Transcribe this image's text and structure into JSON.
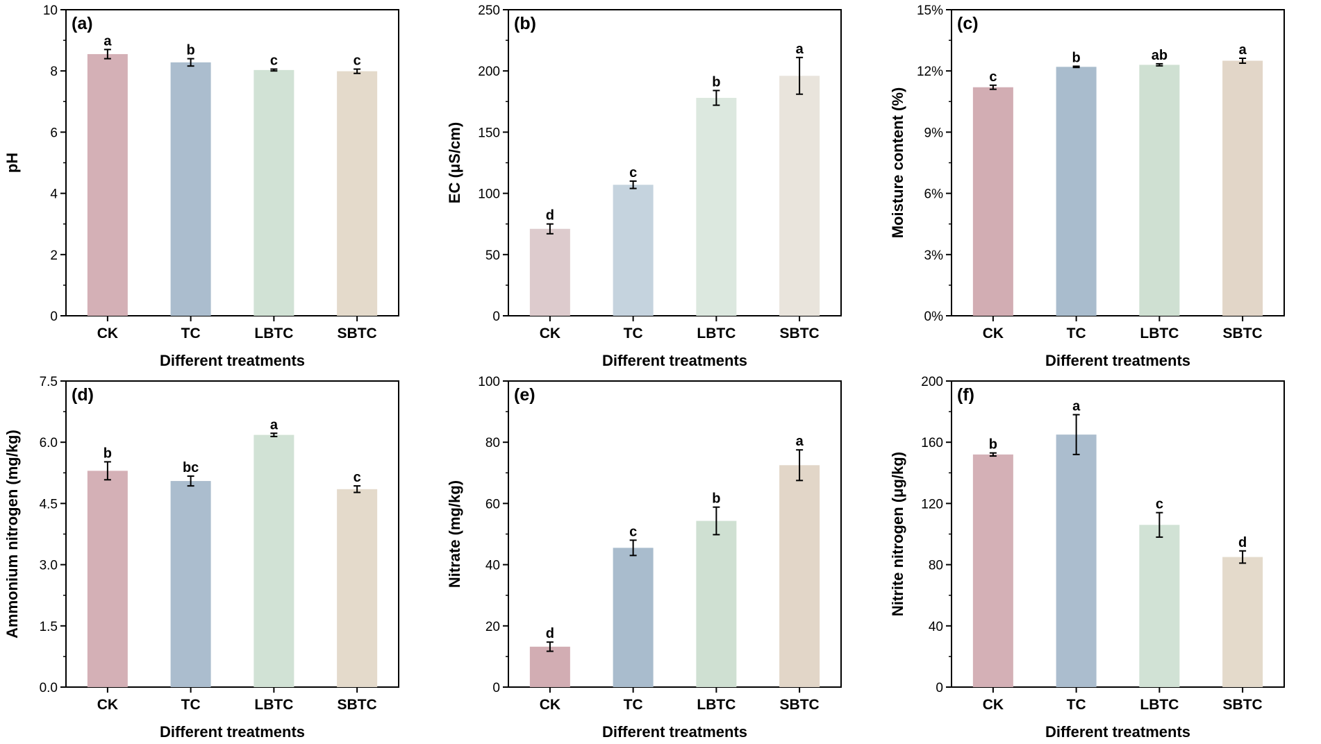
{
  "chart_data": [
    {
      "panel": "(a)",
      "type": "bar",
      "categories": [
        "CK",
        "TC",
        "LBTC",
        "SBTC"
      ],
      "values": [
        8.55,
        8.28,
        8.03,
        7.99
      ],
      "errors": [
        0.15,
        0.12,
        0.03,
        0.07
      ],
      "sig_letters": [
        "a",
        "b",
        "c",
        "c"
      ],
      "colors": [
        "#d4b0b6",
        "#abbdce",
        "#d1e2d5",
        "#e4dacb"
      ],
      "xlabel": "Different treatments",
      "ylabel": "pH",
      "ylim": [
        0,
        10
      ],
      "ytick_values": [
        0,
        2,
        4,
        6,
        8,
        10
      ],
      "ytick_labels": [
        "0",
        "2",
        "4",
        "6",
        "8",
        "10"
      ]
    },
    {
      "panel": "(b)",
      "type": "bar",
      "categories": [
        "CK",
        "TC",
        "LBTC",
        "SBTC"
      ],
      "values": [
        71,
        107,
        178,
        196
      ],
      "errors": [
        4,
        3,
        6,
        15
      ],
      "sig_letters": [
        "d",
        "c",
        "b",
        "a"
      ],
      "colors": [
        "#ddcbcd",
        "#c5d3de",
        "#dce8df",
        "#e9e4dc"
      ],
      "xlabel": "Different treatments",
      "ylabel": "EC (μS/cm)",
      "ylim": [
        0,
        250
      ],
      "ytick_values": [
        0,
        50,
        100,
        150,
        200,
        250
      ],
      "ytick_labels": [
        "0",
        "50",
        "100",
        "150",
        "200",
        "250"
      ]
    },
    {
      "panel": "(c)",
      "type": "bar",
      "categories": [
        "CK",
        "TC",
        "LBTC",
        "SBTC"
      ],
      "values": [
        11.2,
        12.2,
        12.3,
        12.5
      ],
      "errors": [
        0.1,
        0.03,
        0.05,
        0.12
      ],
      "sig_letters": [
        "c",
        "b",
        "ab",
        "a"
      ],
      "colors": [
        "#d2adb3",
        "#a9bccd",
        "#cfe0d2",
        "#e2d6c8"
      ],
      "xlabel": "Different treatments",
      "ylabel": "Moisture content (%)",
      "ylim": [
        0,
        15
      ],
      "ytick_values": [
        0,
        3,
        6,
        9,
        12,
        15
      ],
      "ytick_labels": [
        "0%",
        "3%",
        "6%",
        "9%",
        "12%",
        "15%"
      ]
    },
    {
      "panel": "(d)",
      "type": "bar",
      "categories": [
        "CK",
        "TC",
        "LBTC",
        "SBTC"
      ],
      "values": [
        5.3,
        5.05,
        6.18,
        4.85
      ],
      "errors": [
        0.22,
        0.12,
        0.04,
        0.08
      ],
      "sig_letters": [
        "b",
        "bc",
        "a",
        "c"
      ],
      "colors": [
        "#d4b0b6",
        "#abbdce",
        "#d1e2d5",
        "#e4dacb"
      ],
      "xlabel": "Different treatments",
      "ylabel": "Ammonium nitrogen (mg/kg)",
      "ylim": [
        0,
        7.5
      ],
      "ytick_values": [
        0,
        1.5,
        3.0,
        4.5,
        6.0,
        7.5
      ],
      "ytick_labels": [
        "0.0",
        "1.5",
        "3.0",
        "4.5",
        "6.0",
        "7.5"
      ]
    },
    {
      "panel": "(e)",
      "type": "bar",
      "categories": [
        "CK",
        "TC",
        "LBTC",
        "SBTC"
      ],
      "values": [
        13.2,
        45.5,
        54.3,
        72.5
      ],
      "errors": [
        1.5,
        2.5,
        4.5,
        5.0
      ],
      "sig_letters": [
        "d",
        "c",
        "b",
        "a"
      ],
      "colors": [
        "#d2adb3",
        "#a9bccd",
        "#cfe0d2",
        "#e2d6c8"
      ],
      "xlabel": "Different treatments",
      "ylabel": "Nitrate (mg/kg)",
      "ylim": [
        0,
        100
      ],
      "ytick_values": [
        0,
        20,
        40,
        60,
        80,
        100
      ],
      "ytick_labels": [
        "0",
        "20",
        "40",
        "60",
        "80",
        "100"
      ]
    },
    {
      "panel": "(f)",
      "type": "bar",
      "categories": [
        "CK",
        "TC",
        "LBTC",
        "SBTC"
      ],
      "values": [
        152,
        165,
        106,
        85
      ],
      "errors": [
        1,
        13,
        8,
        4
      ],
      "sig_letters": [
        "b",
        "a",
        "c",
        "d"
      ],
      "colors": [
        "#d4b0b6",
        "#abbdce",
        "#d1e2d5",
        "#e4dacb"
      ],
      "xlabel": "Different treatments",
      "ylabel": "Nitrite nitrogen (μg/kg)",
      "ylim": [
        0,
        200
      ],
      "ytick_values": [
        0,
        40,
        80,
        120,
        160,
        200
      ],
      "ytick_labels": [
        "0",
        "40",
        "80",
        "120",
        "160",
        "200"
      ]
    }
  ]
}
